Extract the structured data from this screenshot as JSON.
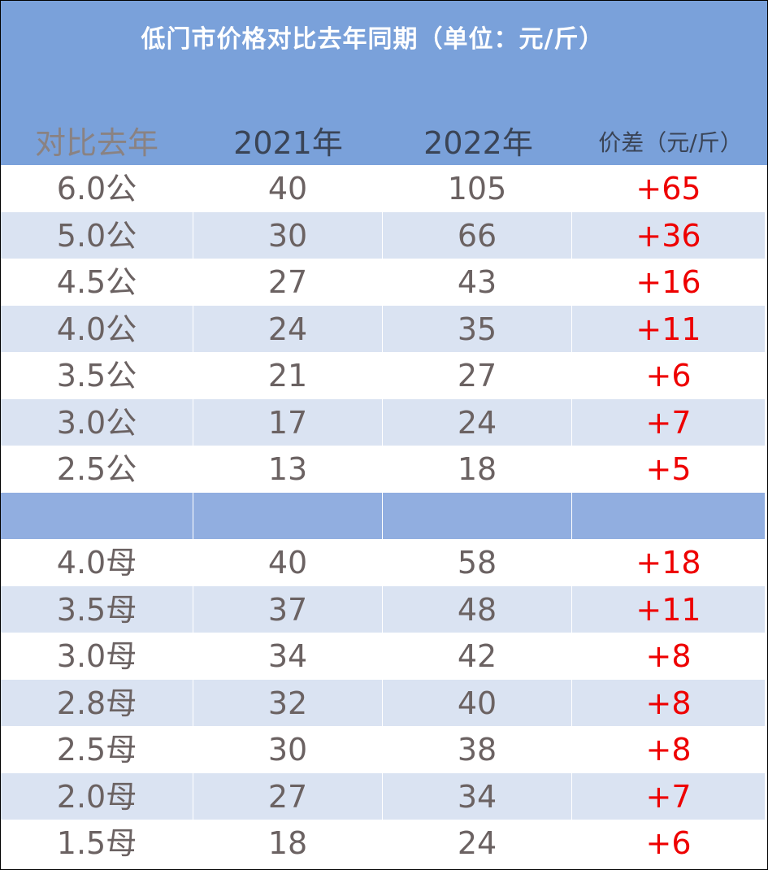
{
  "table": {
    "title": "低门市价格对比去年同期（单位：元/斤）",
    "headers": [
      "对比去年",
      "2021年",
      "2022年",
      "价差（元/斤）"
    ],
    "rows": [
      [
        "6.0公",
        "40",
        "105",
        "+65"
      ],
      [
        "5.0公",
        "30",
        "66",
        "+36"
      ],
      [
        "4.5公",
        "27",
        "43",
        "+16"
      ],
      [
        "4.0公",
        "24",
        "35",
        "+11"
      ],
      [
        "3.5公",
        "21",
        "27",
        "+6"
      ],
      [
        "3.0公",
        "17",
        "24",
        "+7"
      ],
      [
        "2.5公",
        "13",
        "18",
        "+5"
      ],
      [
        "",
        "",
        "",
        ""
      ],
      [
        "4.0母",
        "40",
        "58",
        "+18"
      ],
      [
        "3.5母",
        "37",
        "48",
        "+11"
      ],
      [
        "3.0母",
        "34",
        "42",
        "+8"
      ],
      [
        "2.8母",
        "32",
        "40",
        "+8"
      ],
      [
        "2.5母",
        "30",
        "38",
        "+8"
      ],
      [
        "2.0母",
        "27",
        "34",
        "+7"
      ],
      [
        "1.5母",
        "18",
        "24",
        "+6"
      ]
    ]
  },
  "colors": {
    "header_bg": "#7aa1da",
    "alt_row_bg": "#dae3f2",
    "separator_row_bg": "#91aee0",
    "diff_text": "#ee0000",
    "body_text": "#6b6262"
  }
}
